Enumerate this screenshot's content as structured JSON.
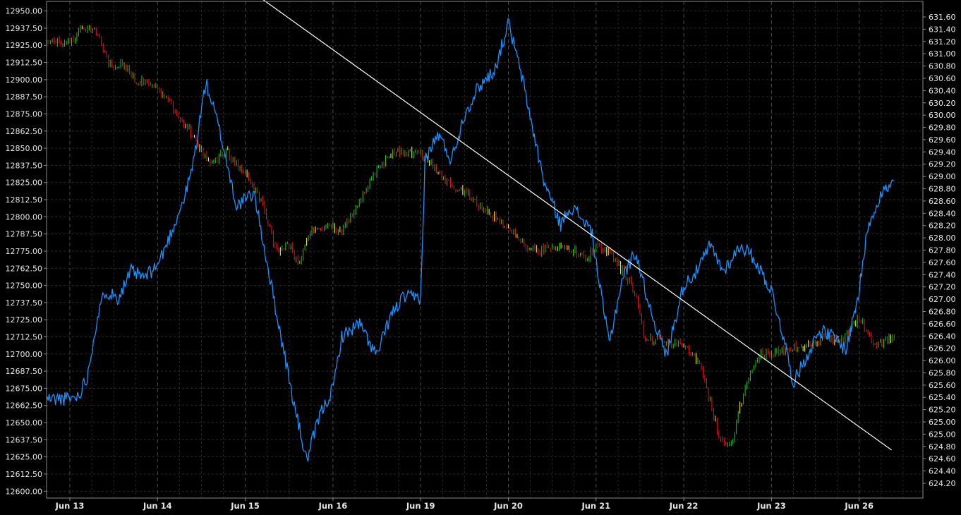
{
  "chart_data": {
    "type": "line",
    "title": "",
    "grid": true,
    "x_categories": [
      "Jun 13",
      "Jun 14",
      "Jun 15",
      "Jun 16",
      "Jun 19",
      "Jun 20",
      "Jun 21",
      "Jun 22",
      "Jun 23",
      "Jun 26"
    ],
    "y_left": {
      "range": [
        12595,
        12957
      ],
      "ticks": [
        "12600.00",
        "12612.50",
        "12625.00",
        "12637.50",
        "12650.00",
        "12662.50",
        "12675.00",
        "12687.50",
        "12700.00",
        "12712.50",
        "12725.00",
        "12737.50",
        "12750.00",
        "12762.50",
        "12775.00",
        "12787.50",
        "12800.00",
        "12812.50",
        "12825.00",
        "12837.50",
        "12850.00",
        "12862.50",
        "12875.00",
        "12887.50",
        "12900.00",
        "12912.50",
        "12925.00",
        "12937.50",
        "12950.00"
      ]
    },
    "y_right": {
      "range": [
        624.13,
        631.73
      ],
      "ticks": [
        "624.20",
        "624.40",
        "624.60",
        "624.80",
        "625.00",
        "625.00",
        "625.20",
        "625.40",
        "625.60",
        "625.80",
        "626.00",
        "626.20",
        "626.40",
        "626.60",
        "626.80",
        "627.00",
        "627.20",
        "627.40",
        "627.60",
        "627.80",
        "628.00",
        "628.20",
        "628.40",
        "628.60",
        "628.80",
        "629.00",
        "629.20",
        "629.40",
        "629.60",
        "629.80",
        "630.00",
        "630.20",
        "630.40",
        "630.60",
        "630.80",
        "631.00",
        "631.20",
        "631.40",
        "631.60"
      ]
    },
    "series": [
      {
        "axis": "left",
        "style": "candlestick (green up / red down / yellow flat)",
        "x": [
          0,
          0.15,
          0.3,
          0.45,
          0.6,
          0.75,
          0.9,
          1.0,
          1.3,
          1.6,
          1.8,
          2.0,
          2.2,
          2.35,
          2.5,
          2.6,
          2.75,
          2.95,
          3.1,
          3.3,
          3.5,
          3.7,
          3.85,
          4.0,
          4.1,
          4.3,
          4.55,
          4.75,
          5.0,
          5.3,
          5.6,
          5.9,
          6.0,
          6.15,
          6.3,
          6.45,
          6.55,
          6.75,
          6.95,
          7.0,
          7.2,
          7.4,
          7.55,
          7.65,
          7.85,
          8.0,
          8.2,
          8.4,
          8.6,
          8.8,
          9.0,
          9.2,
          9.4
        ],
        "values": [
          12928,
          12938,
          12936,
          12910,
          12912,
          12900,
          12897,
          12895,
          12868,
          12840,
          12847,
          12830,
          12810,
          12775,
          12780,
          12765,
          12790,
          12793,
          12790,
          12810,
          12835,
          12848,
          12847,
          12846,
          12840,
          12825,
          12815,
          12805,
          12790,
          12775,
          12780,
          12770,
          12778,
          12775,
          12760,
          12745,
          12712,
          12710,
          12708,
          12706,
          12690,
          12640,
          12633,
          12665,
          12700,
          12700,
          12705,
          12705,
          12712,
          12710,
          12726,
          12705,
          12712
        ]
      },
      {
        "axis": "right",
        "style": "line",
        "color": "#1e90ff",
        "x": [
          0,
          0.1,
          0.2,
          0.3,
          0.4,
          0.55,
          0.7,
          0.85,
          1.0,
          1.1,
          1.3,
          1.4,
          1.55,
          1.7,
          1.9,
          2.1,
          2.35,
          2.55,
          2.7,
          2.85,
          3.0,
          3.1,
          3.3,
          3.5,
          3.65,
          3.8,
          4.0,
          4.05,
          4.2,
          4.35,
          4.5,
          4.65,
          4.85,
          5.0,
          5.15,
          5.4,
          5.6,
          5.7,
          5.85,
          5.95,
          6.05,
          6.15,
          6.3,
          6.45,
          6.6,
          6.8,
          7.0,
          7.15,
          7.3,
          7.45,
          7.65,
          7.8,
          8.0,
          8.1,
          8.25,
          8.4,
          8.55,
          8.7,
          8.85,
          9.0,
          9.1,
          9.25,
          9.4
        ],
        "values": [
          625.65,
          625.7,
          626.0,
          626.8,
          627.3,
          627.2,
          627.6,
          627.5,
          627.7,
          628.0,
          628.7,
          629.2,
          630.5,
          629.8,
          628.6,
          628.8,
          627.0,
          625.6,
          624.7,
          625.4,
          625.8,
          626.6,
          626.8,
          626.3,
          626.9,
          627.2,
          627.2,
          629.3,
          629.7,
          629.3,
          630.0,
          630.4,
          630.7,
          631.4,
          630.6,
          629.0,
          628.3,
          628.6,
          628.4,
          628.2,
          627.3,
          626.5,
          627.5,
          627.9,
          627.1,
          626.3,
          627.4,
          627.6,
          628.0,
          627.6,
          628.0,
          627.8,
          627.3,
          626.8,
          625.9,
          626.3,
          626.7,
          626.6,
          626.4,
          627.3,
          628.3,
          628.8,
          628.95
        ]
      },
      {
        "axis": "left",
        "style": "trendline",
        "color": "#ffffff",
        "x": [
          2.1,
          9.37
        ],
        "values": [
          12963,
          12630
        ]
      }
    ]
  }
}
